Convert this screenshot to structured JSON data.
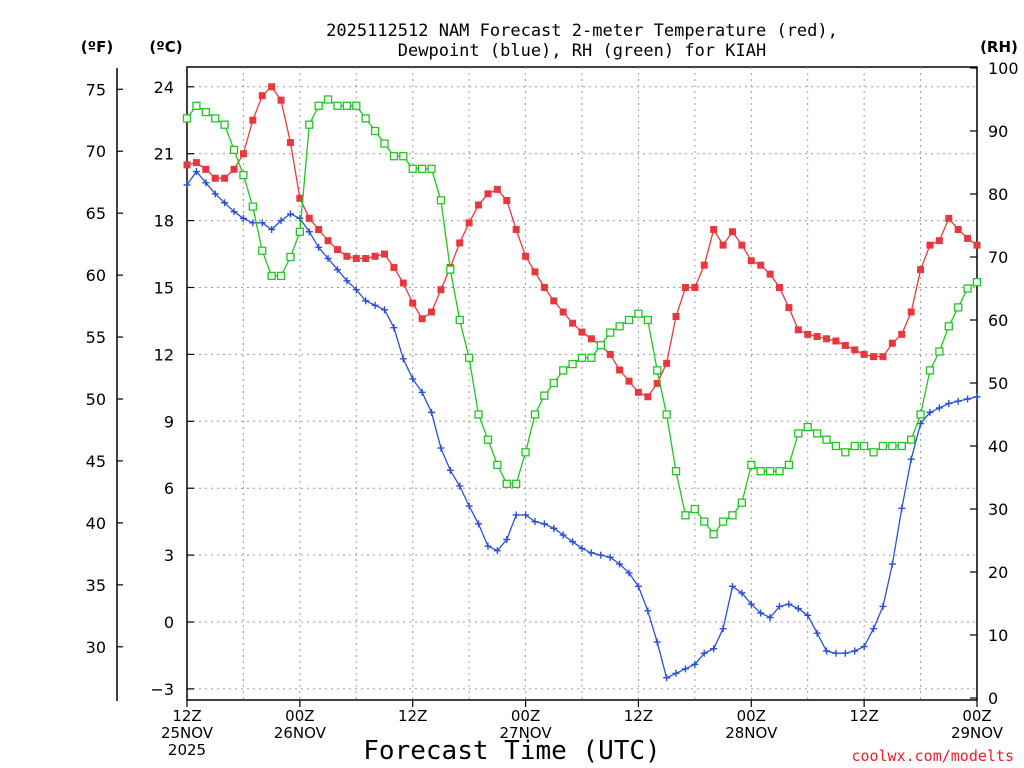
{
  "chart_data": {
    "type": "line",
    "title_line1": "2025112512 NAM Forecast 2-meter Temperature (red),",
    "title_line2": "Dewpoint (blue), RH (green) for KIAH",
    "xlabel": "Forecast Time (UTC)",
    "credit": "coolwx.com/modelts",
    "units": {
      "fahrenheit": "(ºF)",
      "celsius": "(ºC)",
      "rh": "(RH)"
    },
    "colors": {
      "temperature": "#e8383d",
      "dewpoint": "#2b4fd6",
      "rh": "#1ec81e",
      "grid": "#9a9a9a"
    },
    "x_range_hours": [
      0,
      84
    ],
    "celsius_range": [
      -3.5,
      25.0
    ],
    "rh_range": [
      0,
      100
    ],
    "celsius_ticks": [
      {
        "v": -3,
        "label": "−3"
      },
      {
        "v": 0,
        "label": "0"
      },
      {
        "v": 3,
        "label": "3"
      },
      {
        "v": 6,
        "label": "6"
      },
      {
        "v": 9,
        "label": "9"
      },
      {
        "v": 12,
        "label": "12"
      },
      {
        "v": 15,
        "label": "15"
      },
      {
        "v": 18,
        "label": "18"
      },
      {
        "v": 21,
        "label": "21"
      },
      {
        "v": 24,
        "label": "24"
      }
    ],
    "fahrenheit_ticks": [
      {
        "v": 30,
        "label": "30"
      },
      {
        "v": 35,
        "label": "35"
      },
      {
        "v": 40,
        "label": "40"
      },
      {
        "v": 45,
        "label": "45"
      },
      {
        "v": 50,
        "label": "50"
      },
      {
        "v": 55,
        "label": "55"
      },
      {
        "v": 60,
        "label": "60"
      },
      {
        "v": 65,
        "label": "65"
      },
      {
        "v": 70,
        "label": "70"
      },
      {
        "v": 75,
        "label": "75"
      }
    ],
    "rh_ticks": [
      {
        "v": 0,
        "label": "0"
      },
      {
        "v": 10,
        "label": "10"
      },
      {
        "v": 20,
        "label": "20"
      },
      {
        "v": 30,
        "label": "30"
      },
      {
        "v": 40,
        "label": "40"
      },
      {
        "v": 50,
        "label": "50"
      },
      {
        "v": 60,
        "label": "60"
      },
      {
        "v": 70,
        "label": "70"
      },
      {
        "v": 80,
        "label": "80"
      },
      {
        "v": 90,
        "label": "90"
      },
      {
        "v": 100,
        "label": "100"
      }
    ],
    "x_ticks": [
      {
        "hour": 0,
        "lines": [
          "12Z",
          "25NOV",
          "2025"
        ]
      },
      {
        "hour": 12,
        "lines": [
          "00Z",
          "26NOV"
        ]
      },
      {
        "hour": 24,
        "lines": [
          "12Z"
        ]
      },
      {
        "hour": 36,
        "lines": [
          "00Z",
          "27NOV"
        ]
      },
      {
        "hour": 48,
        "lines": [
          "12Z"
        ]
      },
      {
        "hour": 60,
        "lines": [
          "00Z",
          "28NOV"
        ]
      },
      {
        "hour": 72,
        "lines": [
          "12Z"
        ]
      },
      {
        "hour": 84,
        "lines": [
          "00Z",
          "29NOV"
        ]
      }
    ],
    "series": [
      {
        "name": "Temperature (°C)",
        "color_key": "temperature",
        "marker": "filled-square",
        "axis": "celsius",
        "x": [
          0,
          1,
          2,
          3,
          4,
          5,
          6,
          7,
          8,
          9,
          10,
          11,
          12,
          13,
          14,
          15,
          16,
          17,
          18,
          19,
          20,
          21,
          22,
          23,
          24,
          25,
          26,
          27,
          28,
          29,
          30,
          31,
          32,
          33,
          34,
          35,
          36,
          37,
          38,
          39,
          40,
          41,
          42,
          43,
          44,
          45,
          46,
          47,
          48,
          49,
          50,
          51,
          52,
          53,
          54,
          55,
          56,
          57,
          58,
          59,
          60,
          61,
          62,
          63,
          64,
          65,
          66,
          67,
          68,
          69,
          70,
          71,
          72,
          73,
          74,
          75,
          76,
          77,
          78,
          79,
          80,
          81,
          82,
          83,
          84
        ],
        "values": [
          20.5,
          20.6,
          20.3,
          19.9,
          19.9,
          20.3,
          21.0,
          22.5,
          23.6,
          24.0,
          23.4,
          21.5,
          19.0,
          18.1,
          17.6,
          17.1,
          16.7,
          16.4,
          16.3,
          16.3,
          16.4,
          16.5,
          15.9,
          15.2,
          14.3,
          13.6,
          13.9,
          14.9,
          15.9,
          17.0,
          17.9,
          18.7,
          19.2,
          19.4,
          18.9,
          17.6,
          16.4,
          15.7,
          15.0,
          14.4,
          13.9,
          13.4,
          13.0,
          12.7,
          12.4,
          12.0,
          11.3,
          10.8,
          10.3,
          10.1,
          10.7,
          11.6,
          13.7,
          15.0,
          15.0,
          16.0,
          17.6,
          16.9,
          17.5,
          16.9,
          16.2,
          16.0,
          15.6,
          15.0,
          14.1,
          13.1,
          12.9,
          12.8,
          12.7,
          12.6,
          12.4,
          12.2,
          12.0,
          11.9,
          11.9,
          12.5,
          12.9,
          13.9,
          15.8,
          16.9,
          17.1,
          18.1,
          17.6,
          17.2,
          16.9
        ]
      },
      {
        "name": "Dewpoint (°C)",
        "color_key": "dewpoint",
        "marker": "plus",
        "axis": "celsius",
        "x": [
          0,
          1,
          2,
          3,
          4,
          5,
          6,
          7,
          8,
          9,
          10,
          11,
          12,
          13,
          14,
          15,
          16,
          17,
          18,
          19,
          20,
          21,
          22,
          23,
          24,
          25,
          26,
          27,
          28,
          29,
          30,
          31,
          32,
          33,
          34,
          35,
          36,
          37,
          38,
          39,
          40,
          41,
          42,
          43,
          44,
          45,
          46,
          47,
          48,
          49,
          50,
          51,
          52,
          53,
          54,
          55,
          56,
          57,
          58,
          59,
          60,
          61,
          62,
          63,
          64,
          65,
          66,
          67,
          68,
          69,
          70,
          71,
          72,
          73,
          74,
          75,
          76,
          77,
          78,
          79,
          80,
          81,
          82,
          83,
          84
        ],
        "values": [
          19.6,
          20.2,
          19.7,
          19.2,
          18.8,
          18.4,
          18.1,
          17.9,
          17.9,
          17.6,
          18.0,
          18.3,
          18.1,
          17.5,
          16.8,
          16.3,
          15.8,
          15.3,
          14.9,
          14.4,
          14.2,
          14.0,
          13.2,
          11.8,
          10.9,
          10.3,
          9.4,
          7.8,
          6.8,
          6.1,
          5.2,
          4.4,
          3.4,
          3.2,
          3.7,
          4.8,
          4.8,
          4.5,
          4.4,
          4.2,
          3.9,
          3.6,
          3.3,
          3.1,
          3.0,
          2.9,
          2.6,
          2.2,
          1.6,
          0.5,
          -0.9,
          -2.5,
          -2.3,
          -2.1,
          -1.9,
          -1.4,
          -1.2,
          -0.3,
          1.6,
          1.3,
          0.8,
          0.4,
          0.2,
          0.7,
          0.8,
          0.6,
          0.3,
          -0.5,
          -1.3,
          -1.4,
          -1.4,
          -1.3,
          -1.1,
          -0.3,
          0.7,
          2.6,
          5.1,
          7.3,
          8.9,
          9.4,
          9.6,
          9.8,
          9.9,
          10.0,
          10.1
        ]
      },
      {
        "name": "Relative Humidity (%)",
        "color_key": "rh",
        "marker": "open-square",
        "axis": "rh",
        "x": [
          0,
          1,
          2,
          3,
          4,
          5,
          6,
          7,
          8,
          9,
          10,
          11,
          12,
          13,
          14,
          15,
          16,
          17,
          18,
          19,
          20,
          21,
          22,
          23,
          24,
          25,
          26,
          27,
          28,
          29,
          30,
          31,
          32,
          33,
          34,
          35,
          36,
          37,
          38,
          39,
          40,
          41,
          42,
          43,
          44,
          45,
          46,
          47,
          48,
          49,
          50,
          51,
          52,
          53,
          54,
          55,
          56,
          57,
          58,
          59,
          60,
          61,
          62,
          63,
          64,
          65,
          66,
          67,
          68,
          69,
          70,
          71,
          72,
          73,
          74,
          75,
          76,
          77,
          78,
          79,
          80,
          81,
          82,
          83,
          84
        ],
        "values": [
          92,
          94,
          93,
          92,
          91,
          87,
          83,
          78,
          71,
          67,
          67,
          70,
          74,
          91,
          94,
          95,
          94,
          94,
          94,
          92,
          90,
          88,
          86,
          86,
          84,
          84,
          84,
          79,
          68,
          60,
          54,
          45,
          41,
          37,
          34,
          34,
          39,
          45,
          48,
          50,
          52,
          53,
          54,
          54,
          56,
          58,
          59,
          60,
          61,
          60,
          52,
          45,
          36,
          29,
          30,
          28,
          26,
          28,
          29,
          31,
          37,
          36,
          36,
          36,
          37,
          42,
          43,
          42,
          41,
          40,
          39,
          40,
          40,
          39,
          40,
          40,
          40,
          41,
          45,
          52,
          55,
          59,
          62,
          65,
          66
        ]
      }
    ]
  }
}
